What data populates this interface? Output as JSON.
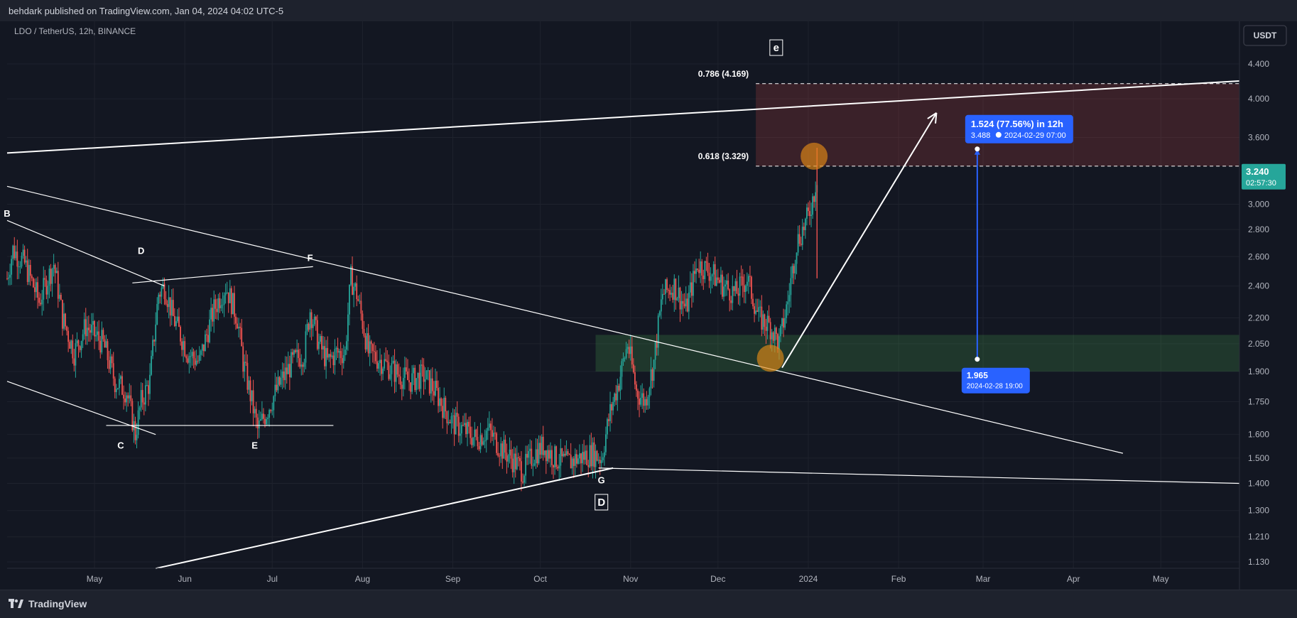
{
  "header": {
    "published": "behdark published on TradingView.com, Jan 04, 2024 04:02 UTC-5"
  },
  "footer": {
    "brand": "TradingView"
  },
  "chart_data": {
    "type": "candlestick",
    "title": "LDO / TetherUS, 12h, BINANCE",
    "currency": "USDT",
    "y_scale": "log",
    "ylim": [
      1.1,
      5.0
    ],
    "y_ticks": [
      "4.400",
      "4.000",
      "3.600",
      "3.240",
      "3.000",
      "2.800",
      "2.600",
      "2.400",
      "2.200",
      "2.050",
      "1.900",
      "1.750",
      "1.600",
      "1.500",
      "1.400",
      "1.300",
      "1.210",
      "1.130"
    ],
    "x_range": [
      "2023-04-01",
      "2024-05-28"
    ],
    "x_ticks": [
      {
        "label": "May",
        "date": "2023-05-01"
      },
      {
        "label": "Jun",
        "date": "2023-06-01"
      },
      {
        "label": "Jul",
        "date": "2023-07-01"
      },
      {
        "label": "Aug",
        "date": "2023-08-01"
      },
      {
        "label": "Sep",
        "date": "2023-09-01"
      },
      {
        "label": "Oct",
        "date": "2023-10-01"
      },
      {
        "label": "Nov",
        "date": "2023-11-01"
      },
      {
        "label": "Dec",
        "date": "2023-12-01"
      },
      {
        "label": "2024",
        "date": "2024-01-01"
      },
      {
        "label": "Feb",
        "date": "2024-02-01"
      },
      {
        "label": "Mar",
        "date": "2024-03-01"
      },
      {
        "label": "Apr",
        "date": "2024-04-01"
      },
      {
        "label": "May",
        "date": "2024-05-01"
      }
    ],
    "current_price": {
      "value": "3.240",
      "countdown": "02:57:30",
      "numeric": 3.24
    },
    "price_path": [
      [
        "2023-04-01",
        2.45
      ],
      [
        "2023-04-03",
        2.65
      ],
      [
        "2023-04-07",
        2.55
      ],
      [
        "2023-04-12",
        2.3
      ],
      [
        "2023-04-17",
        2.55
      ],
      [
        "2023-04-20",
        2.2
      ],
      [
        "2023-04-24",
        2.0
      ],
      [
        "2023-04-28",
        2.15
      ],
      [
        "2023-05-04",
        2.05
      ],
      [
        "2023-05-08",
        1.85
      ],
      [
        "2023-05-12",
        1.8
      ],
      [
        "2023-05-15",
        1.6
      ],
      [
        "2023-05-17",
        1.75
      ],
      [
        "2023-05-20",
        1.85
      ],
      [
        "2023-05-23",
        2.35
      ],
      [
        "2023-05-25",
        2.4
      ],
      [
        "2023-05-28",
        2.2
      ],
      [
        "2023-06-02",
        2.0
      ],
      [
        "2023-06-06",
        1.95
      ],
      [
        "2023-06-11",
        2.25
      ],
      [
        "2023-06-15",
        2.4
      ],
      [
        "2023-06-19",
        2.2
      ],
      [
        "2023-06-21",
        1.95
      ],
      [
        "2023-06-24",
        1.75
      ],
      [
        "2023-06-26",
        1.62
      ],
      [
        "2023-06-29",
        1.7
      ],
      [
        "2023-07-04",
        1.85
      ],
      [
        "2023-07-08",
        1.95
      ],
      [
        "2023-07-12",
        2.0
      ],
      [
        "2023-07-14",
        2.25
      ],
      [
        "2023-07-17",
        2.05
      ],
      [
        "2023-07-20",
        1.95
      ],
      [
        "2023-07-23",
        2.0
      ],
      [
        "2023-07-26",
        2.0
      ],
      [
        "2023-07-28",
        2.45
      ],
      [
        "2023-07-30",
        2.35
      ],
      [
        "2023-08-03",
        2.0
      ],
      [
        "2023-08-08",
        1.95
      ],
      [
        "2023-08-12",
        1.9
      ],
      [
        "2023-08-17",
        1.85
      ],
      [
        "2023-08-22",
        1.88
      ],
      [
        "2023-08-26",
        1.8
      ],
      [
        "2023-08-29",
        1.72
      ],
      [
        "2023-09-01",
        1.65
      ],
      [
        "2023-09-05",
        1.62
      ],
      [
        "2023-09-09",
        1.58
      ],
      [
        "2023-09-13",
        1.62
      ],
      [
        "2023-09-17",
        1.55
      ],
      [
        "2023-09-21",
        1.5
      ],
      [
        "2023-09-25",
        1.45
      ],
      [
        "2023-09-29",
        1.52
      ],
      [
        "2023-10-02",
        1.55
      ],
      [
        "2023-10-06",
        1.5
      ],
      [
        "2023-10-10",
        1.48
      ],
      [
        "2023-10-14",
        1.5
      ],
      [
        "2023-10-19",
        1.52
      ],
      [
        "2023-10-22",
        1.5
      ],
      [
        "2023-10-25",
        1.7
      ],
      [
        "2023-10-28",
        1.85
      ],
      [
        "2023-10-31",
        2.05
      ],
      [
        "2023-11-03",
        1.8
      ],
      [
        "2023-11-06",
        1.75
      ],
      [
        "2023-11-09",
        1.95
      ],
      [
        "2023-11-12",
        2.35
      ],
      [
        "2023-11-16",
        2.4
      ],
      [
        "2023-11-20",
        2.25
      ],
      [
        "2023-11-24",
        2.55
      ],
      [
        "2023-11-28",
        2.5
      ],
      [
        "2023-12-03",
        2.4
      ],
      [
        "2023-12-07",
        2.35
      ],
      [
        "2023-12-11",
        2.45
      ],
      [
        "2023-12-15",
        2.2
      ],
      [
        "2023-12-19",
        2.15
      ],
      [
        "2023-12-22",
        2.05
      ],
      [
        "2023-12-25",
        2.3
      ],
      [
        "2023-12-28",
        2.7
      ],
      [
        "2024-01-01",
        2.9
      ],
      [
        "2024-01-03",
        3.1
      ],
      [
        "2024-01-04",
        3.24
      ]
    ],
    "levels": {
      "fib_786": {
        "label": "0.786 (4.169)",
        "value": 4.169
      },
      "fib_618": {
        "label": "0.618 (3.329)",
        "value": 3.329
      },
      "support_zone": {
        "low": 1.9,
        "high": 2.1,
        "from": "2023-10-20"
      }
    },
    "waves": [
      {
        "label": "B",
        "date": "2023-04-01",
        "value": 2.9
      },
      {
        "label": "D",
        "date": "2023-05-17",
        "value": 2.62
      },
      {
        "label": "F",
        "date": "2023-07-14",
        "value": 2.57
      },
      {
        "label": "C",
        "date": "2023-05-10",
        "value": 1.54
      },
      {
        "label": "E",
        "date": "2023-06-25",
        "value": 1.54
      },
      {
        "label": "G",
        "date": "2023-10-22",
        "value": 1.4
      }
    ],
    "boxed_labels": [
      {
        "label": "e",
        "date": "2023-12-21",
        "value": 4.6
      },
      {
        "label": "D",
        "date": "2023-10-22",
        "value": 1.33
      }
    ],
    "measure": {
      "title": "1.524 (77.56%) in 12h",
      "top": {
        "value": "3.488",
        "date": "2024-02-29  07:00"
      },
      "bottom": {
        "value": "1.965",
        "date": "2024-02-28 19:00"
      }
    },
    "trendlines": [
      {
        "from": [
          "2023-04-01",
          3.45
        ],
        "to": [
          "2024-05-28",
          4.2
        ]
      },
      {
        "from": [
          "2023-04-01",
          3.15
        ],
        "to": [
          "2024-04-18",
          1.52
        ]
      },
      {
        "from": [
          "2023-04-01",
          2.87
        ],
        "to": [
          "2023-05-25",
          2.4
        ]
      },
      {
        "from": [
          "2023-05-14",
          2.42
        ],
        "to": [
          "2023-07-15",
          2.53
        ]
      },
      {
        "from": [
          "2023-04-01",
          1.85
        ],
        "to": [
          "2023-05-22",
          1.6
        ]
      },
      {
        "from": [
          "2023-05-05",
          1.64
        ],
        "to": [
          "2023-07-22",
          1.64
        ]
      },
      {
        "from": [
          "2023-05-22",
          1.11
        ],
        "to": [
          "2023-10-26",
          1.46
        ]
      },
      {
        "from": [
          "2023-10-21",
          1.46
        ],
        "to": [
          "2024-05-28",
          1.4
        ]
      }
    ],
    "projection_arrow": {
      "from": [
        "2023-12-23",
        1.92
      ],
      "to": [
        "2024-02-14",
        3.85
      ]
    },
    "highlight_circles": [
      {
        "date": "2024-01-03",
        "value": 3.42,
        "color": "#e38a16"
      },
      {
        "date": "2023-12-19",
        "value": 1.97,
        "color": "#e38a16"
      }
    ],
    "colors": {
      "background": "#131722",
      "up": "#26a69a",
      "down": "#ef5350",
      "grid": "#1e222d",
      "current_price": "#26a69a",
      "measure": "#2962ff",
      "resistance_zone": "rgba(239,83,80,0.18)",
      "support_zone": "rgba(76,175,80,0.22)"
    }
  }
}
